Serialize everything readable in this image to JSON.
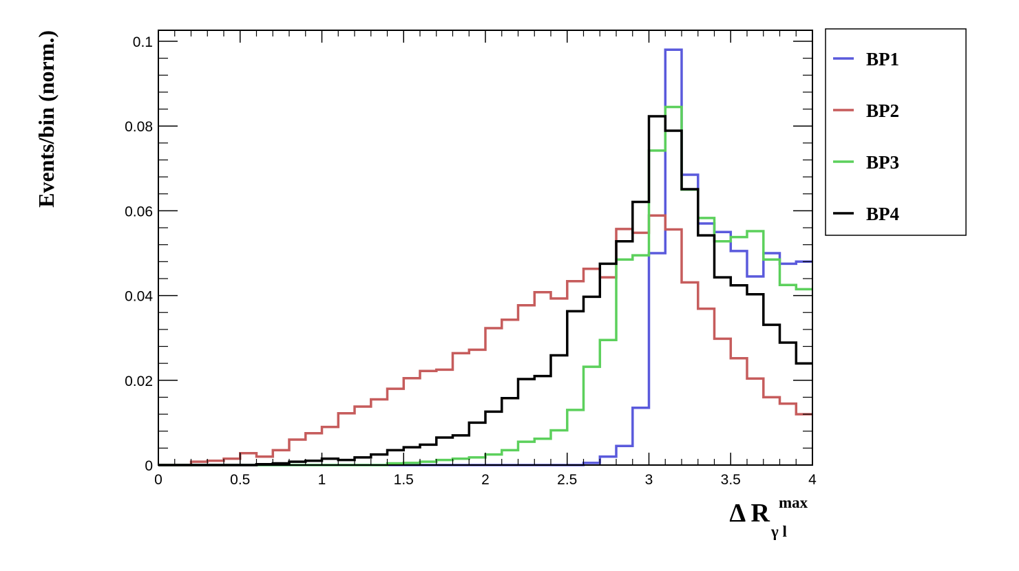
{
  "chart_data": {
    "type": "line",
    "style": "step-histogram",
    "title": "",
    "xlabel": {
      "main": "Δ R",
      "sub": "γ l",
      "sup": "max"
    },
    "ylabel": "Events/bin (norm.)",
    "xlim": [
      0,
      4
    ],
    "ylim": [
      0,
      0.1
    ],
    "x_ticks": [
      "0",
      "0.5",
      "1",
      "1.5",
      "2",
      "2.5",
      "3",
      "3.5",
      "4"
    ],
    "y_ticks": [
      "0",
      "0.02",
      "0.04",
      "0.06",
      "0.08",
      "0.1"
    ],
    "bin_edges_start": 0,
    "bin_width": 0.1,
    "grid": false,
    "legend_position": "top-right outside plot",
    "series": [
      {
        "name": "BP1",
        "color": "#5a5adc",
        "values": [
          0,
          0,
          0,
          0,
          0,
          0,
          0,
          0,
          0,
          0,
          0,
          0,
          0,
          0,
          0,
          0,
          0,
          0,
          0,
          0,
          0,
          0,
          0,
          0,
          0,
          0,
          0.0005,
          0.002,
          0.0045,
          0.0135,
          0.05,
          0.098,
          0.0685,
          0.057,
          0.055,
          0.0505,
          0.0445,
          0.05,
          0.0475,
          0.048
        ]
      },
      {
        "name": "BP2",
        "color": "#c65c5c",
        "values": [
          0,
          0,
          0.0008,
          0.001,
          0.0015,
          0.0028,
          0.002,
          0.0035,
          0.006,
          0.0075,
          0.009,
          0.0122,
          0.0138,
          0.0155,
          0.018,
          0.0205,
          0.0222,
          0.0225,
          0.0264,
          0.0272,
          0.0323,
          0.0343,
          0.0377,
          0.0408,
          0.0393,
          0.0434,
          0.0463,
          0.0443,
          0.0557,
          0.0548,
          0.0589,
          0.0556,
          0.0431,
          0.0369,
          0.0298,
          0.0252,
          0.0204,
          0.016,
          0.0145,
          0.012
        ]
      },
      {
        "name": "BP3",
        "color": "#5cd05c",
        "values": [
          0,
          0,
          0,
          0,
          0,
          0,
          0,
          0,
          0,
          0,
          0,
          0,
          0,
          0,
          0.0004,
          0.0005,
          0.0008,
          0.0012,
          0.0015,
          0.0018,
          0.0025,
          0.0035,
          0.0055,
          0.0062,
          0.0082,
          0.013,
          0.0232,
          0.0295,
          0.0485,
          0.0495,
          0.0742,
          0.0845,
          0.065,
          0.0583,
          0.0528,
          0.0538,
          0.0552,
          0.0485,
          0.0425,
          0.0415
        ]
      },
      {
        "name": "BP4",
        "color": "#000000",
        "values": [
          0,
          0,
          0,
          0,
          0,
          0,
          0.0002,
          0.0004,
          0.0008,
          0.001,
          0.0015,
          0.0012,
          0.0018,
          0.0025,
          0.0035,
          0.0042,
          0.0048,
          0.0065,
          0.007,
          0.01,
          0.0126,
          0.0158,
          0.0203,
          0.021,
          0.0259,
          0.0363,
          0.0397,
          0.0475,
          0.0528,
          0.0621,
          0.0823,
          0.0789,
          0.0651,
          0.0542,
          0.0443,
          0.0424,
          0.0403,
          0.0331,
          0.0289,
          0.024
        ]
      }
    ]
  }
}
